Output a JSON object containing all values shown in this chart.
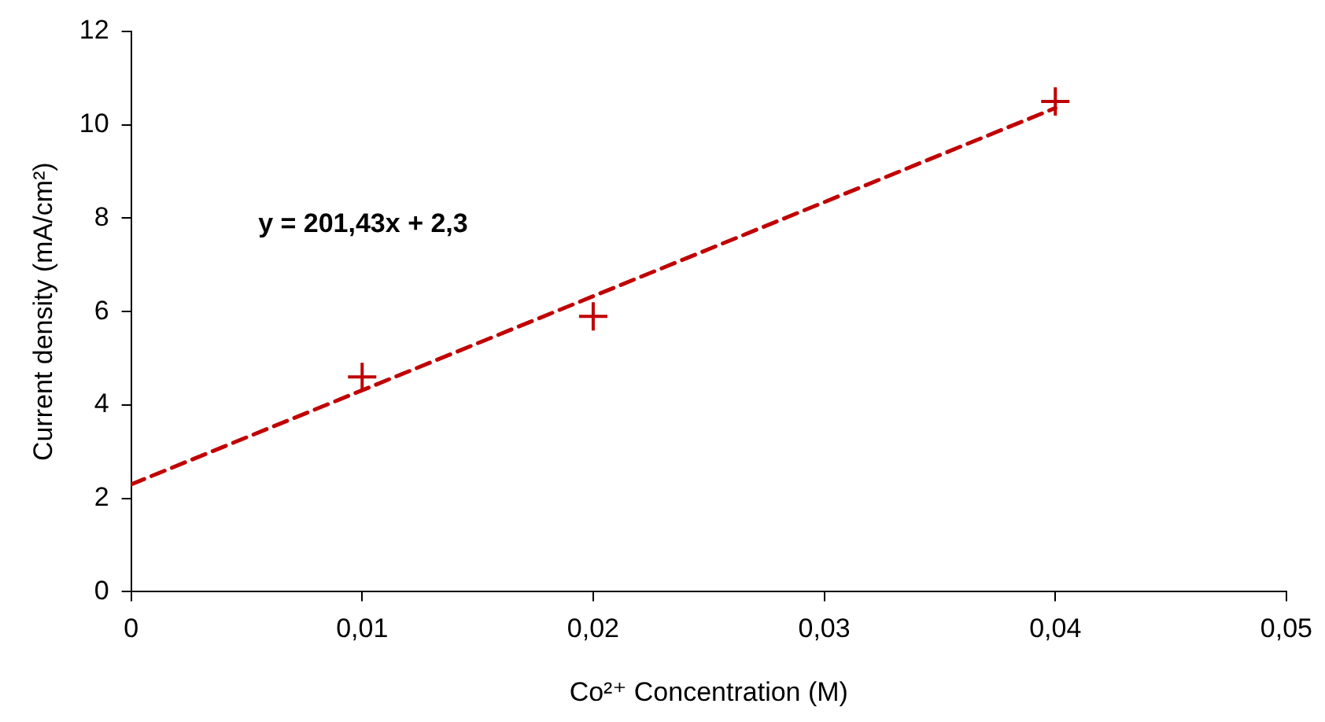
{
  "chart_data": {
    "type": "scatter",
    "xlabel": "Co²⁺ Concentration (M)",
    "ylabel": "Current density (mA/cm²)",
    "x": [
      0.01,
      0.02,
      0.04
    ],
    "series": [
      {
        "color": "#c00000",
        "marker": "cross",
        "values": [
          4.6,
          5.9,
          10.5
        ]
      },
      {
        "type": "line",
        "color": "#c00000",
        "line_style": "dashed",
        "marker": "none",
        "x": [
          0,
          0.04
        ],
        "values": [
          2.3,
          10.36
        ]
      }
    ],
    "xlim": [
      0,
      0.05
    ],
    "xticks": [
      0,
      {
        "value": 0.01,
        "label": "0,01"
      },
      {
        "value": 0.02,
        "label": "0,02"
      },
      {
        "value": 0.03,
        "label": "0,03"
      },
      {
        "value": 0.04,
        "label": "0,04"
      },
      {
        "value": 0.05,
        "label": "0,05"
      }
    ],
    "ylim": [
      0,
      12
    ],
    "yticks": [
      0,
      2,
      4,
      6,
      8,
      10,
      12
    ],
    "annotations": [
      "y = 201,43x + 2,3"
    ],
    "grid": false,
    "legend": false
  }
}
